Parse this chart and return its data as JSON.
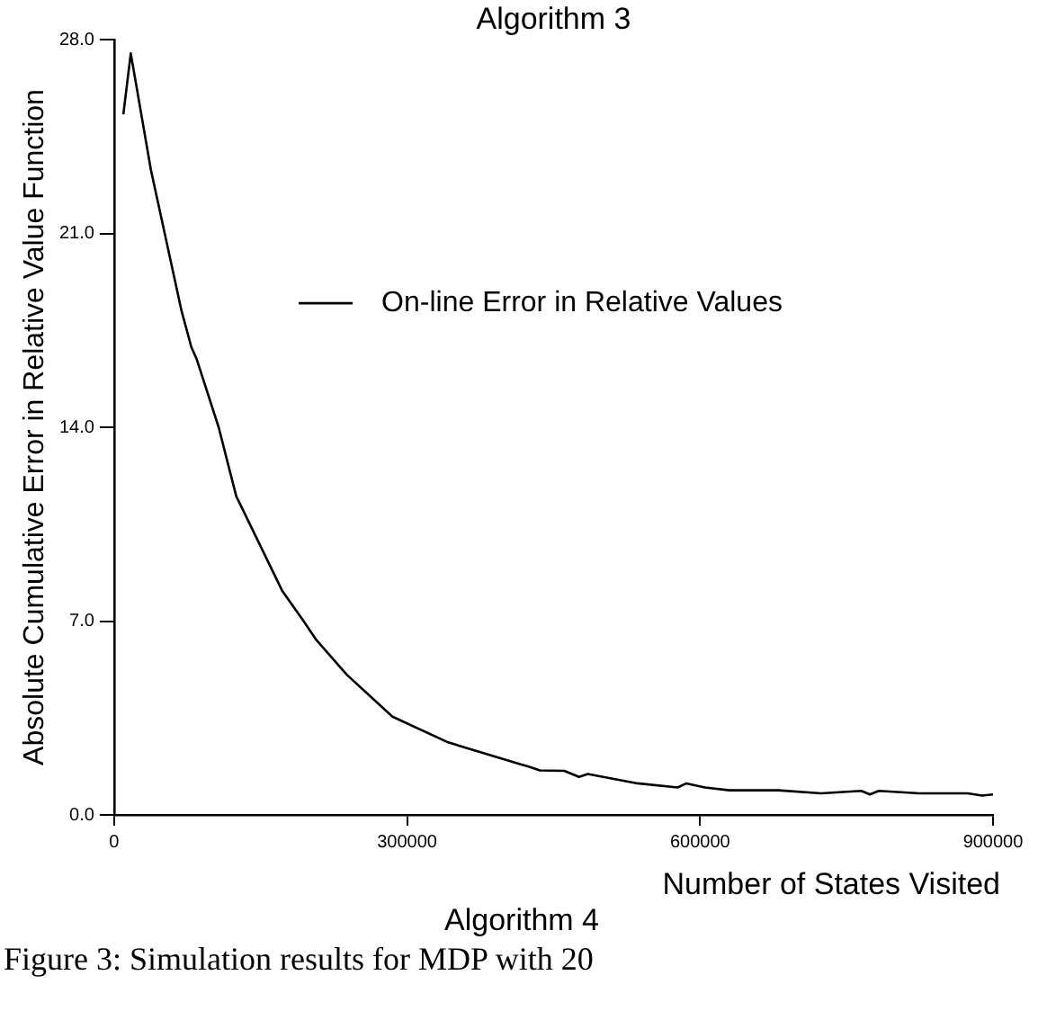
{
  "chart_data": {
    "type": "line",
    "title": "Algorithm 3",
    "xlabel": "Number of States Visited",
    "ylabel": "Absolute Cumulative Error in Relative Value Function",
    "annotations": [
      "Algorithm 4",
      "Figure 3: Simulation results for MDP with 20"
    ],
    "x": [
      9400,
      17000,
      37600,
      69000,
      79000,
      84600,
      107000,
      125000,
      172000,
      194000,
      207000,
      238000,
      285000,
      342000,
      417000,
      423000,
      436000,
      461000,
      476000,
      485000,
      536000,
      577000,
      586000,
      605000,
      630000,
      680000,
      724000,
      765000,
      774000,
      783000,
      824000,
      874000,
      889000,
      900000
    ],
    "series": [
      {
        "name": "On-line Error in Relative Values",
        "color": "#000000",
        "values": [
          25.3,
          27.5,
          23.3,
          18.2,
          16.9,
          16.45,
          14.0,
          11.51,
          8.1,
          7.0,
          6.32,
          5.07,
          3.55,
          2.62,
          1.82,
          1.76,
          1.61,
          1.59,
          1.37,
          1.48,
          1.14,
          0.99,
          1.14,
          0.99,
          0.89,
          0.89,
          0.78,
          0.87,
          0.74,
          0.87,
          0.78,
          0.78,
          0.7,
          0.74
        ]
      }
    ],
    "xlim": [
      0,
      900000
    ],
    "xticks": [
      0,
      300000,
      600000,
      900000
    ],
    "ylim": [
      0,
      28
    ],
    "yticks": [
      {
        "value": 0,
        "label": "0.0"
      },
      {
        "value": 7,
        "label": "7.0"
      },
      {
        "value": 14,
        "label": "14.0"
      },
      {
        "value": 21,
        "label": "21.0"
      },
      {
        "value": 28,
        "label": "28.0"
      }
    ],
    "grid": false,
    "legend": "top right",
    "marker": "none",
    "line_style": "solid"
  }
}
